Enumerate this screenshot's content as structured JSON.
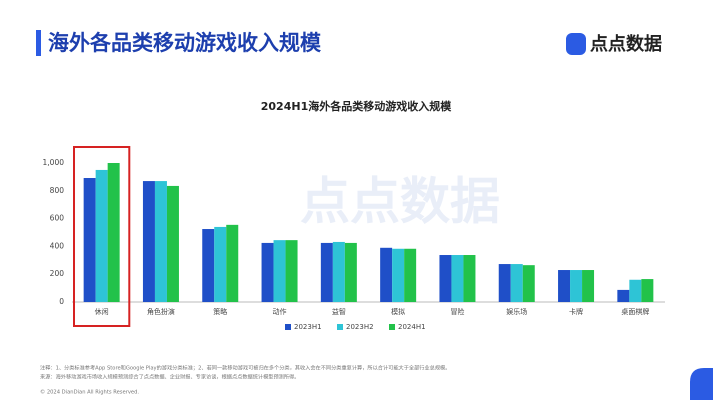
{
  "header": {
    "title": "海外各品类移动游戏收入规模",
    "logo": "点点数据"
  },
  "watermark": "点点数据",
  "chart_data": {
    "type": "bar",
    "title": "2024H1海外各品类移动游戏收入规模",
    "categories": [
      "休闲",
      "角色扮演",
      "策略",
      "动作",
      "益智",
      "模拟",
      "冒险",
      "娱乐场",
      "卡牌",
      "桌面棋牌"
    ],
    "series": [
      {
        "name": "2023H1",
        "color": "#1f4fc8",
        "values": [
          892,
          870,
          525,
          425,
          425,
          390,
          338,
          273,
          230,
          87
        ]
      },
      {
        "name": "2023H2",
        "color": "#2ec4d6",
        "values": [
          950,
          870,
          540,
          445,
          432,
          383,
          338,
          273,
          230,
          160
        ]
      },
      {
        "name": "2024H1",
        "color": "#22c24a",
        "values": [
          1000,
          835,
          555,
          445,
          425,
          383,
          338,
          265,
          230,
          165
        ]
      }
    ],
    "ylim": [
      0,
      1000
    ],
    "yticks": [
      0,
      200,
      400,
      600,
      800,
      {
        "value": 1000,
        "label": "1,000"
      }
    ],
    "grid": false,
    "legend": "bottom"
  },
  "notes": [
    "注释：1、分类标准参考App Store和Google Play的游戏分类标准；2、若同一款移动游戏可被归在多个分类，其收入会在不同分类重复计算，所以合计可能大于全部行业总规模。",
    "来源：海外移动游戏市场收入规模预测综合了点点数据、企业财报、专家访谈，根据点点数据统计模型预测所得。"
  ],
  "copyright": "© 2024 DianDian All Rights Reserved."
}
